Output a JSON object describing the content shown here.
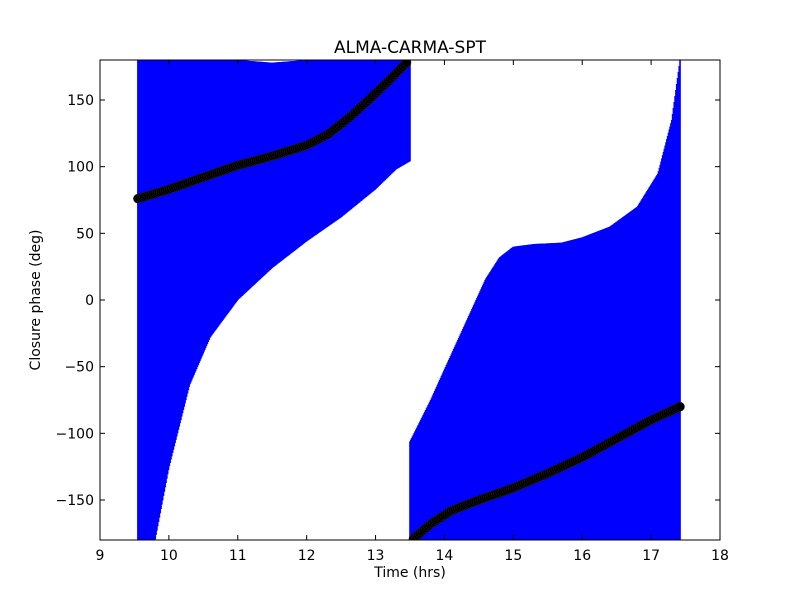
{
  "chart_data": {
    "type": "line",
    "title": "ALMA-CARMA-SPT",
    "xlabel": "Time (hrs)",
    "ylabel": "Closure phase (deg)",
    "xlim": [
      9,
      18
    ],
    "ylim": [
      -180,
      180
    ],
    "xticks": [
      9,
      10,
      11,
      12,
      13,
      14,
      15,
      16,
      17,
      18
    ],
    "yticks": [
      -150,
      -100,
      -50,
      0,
      50,
      100,
      150
    ],
    "xtick_labels": [
      "9",
      "10",
      "11",
      "12",
      "13",
      "14",
      "15",
      "16",
      "17",
      "18"
    ],
    "ytick_labels": [
      "−150",
      "−100",
      "−50",
      "0",
      "50",
      "100",
      "150"
    ],
    "grid": false,
    "colors": {
      "error_band": "#0000ff",
      "data_points": "#000000"
    },
    "series": [
      {
        "style": "black markers",
        "segments": [
          {
            "x": [
              9.55,
              10.0,
              10.5,
              11.0,
              11.5,
              12.0,
              12.3,
              12.6,
              12.9,
              13.2,
              13.45
            ],
            "y": [
              76,
              83,
              92,
              101,
              108,
              116,
              124,
              136,
              150,
              165,
              178
            ]
          },
          {
            "x": [
              13.55,
              13.8,
              14.1,
              14.5,
              15.0,
              15.5,
              16.0,
              16.5,
              17.0,
              17.42
            ],
            "y": [
              -179,
              -168,
              -158,
              -150,
              -141,
              -130,
              -118,
              -104,
              -90,
              -80
            ]
          }
        ]
      },
      {
        "style": "blue error bars",
        "segments": [
          {
            "x": [
              9.55,
              9.62,
              9.7,
              9.8,
              10.0,
              10.3,
              10.6,
              11.0,
              11.5,
              12.0,
              12.5,
              13.0,
              13.3,
              13.5
            ],
            "lower": [
              -180,
              -180,
              -180,
              -180,
              -126,
              -64,
              -28,
              0,
              24,
              44,
              62,
              83,
              98,
              104
            ],
            "upper": [
              180,
              180,
              180,
              180,
              180,
              180,
              180,
              180,
              178,
              180,
              180,
              180,
              180,
              180
            ]
          },
          {
            "x": [
              13.5,
              13.8,
              14.0,
              14.3,
              14.6,
              14.8,
              15.0,
              15.3,
              15.7,
              16.0,
              16.4,
              16.8,
              17.1,
              17.3,
              17.42
            ],
            "lower": [
              -180,
              -180,
              -180,
              -180,
              -180,
              -180,
              -180,
              -180,
              -180,
              -180,
              -180,
              -180,
              -180,
              -180,
              -180
            ],
            "upper": [
              -106,
              -75,
              -52,
              -18,
              16,
              32,
              40,
              42,
              43,
              47,
              55,
              70,
              95,
              135,
              180
            ]
          }
        ]
      }
    ]
  }
}
